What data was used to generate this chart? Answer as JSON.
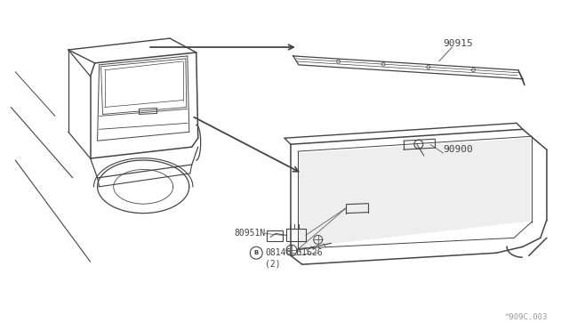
{
  "bg_color": "#ffffff",
  "line_color": "#444444",
  "text_color": "#444444",
  "watermark": "^909C.003",
  "figsize": [
    6.4,
    3.72
  ],
  "dpi": 100
}
